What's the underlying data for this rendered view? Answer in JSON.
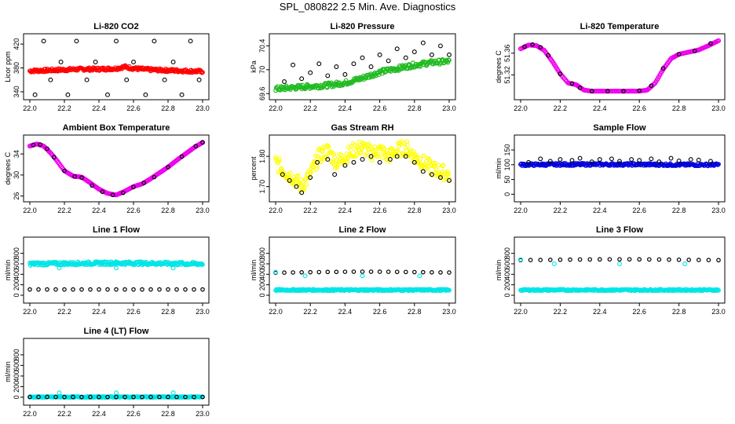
{
  "page": {
    "title": "SPL_080822  2.5 Min. Ave. Diagnostics"
  },
  "chart_data": [
    {
      "id": "co2",
      "type": "scatter",
      "title": "Li-820 CO2",
      "ylabel": "Licor ppm",
      "xlim": [
        22.0,
        23.0
      ],
      "ylim": [
        332,
        432
      ],
      "xticks": [
        "22.0",
        "22.2",
        "22.4",
        "22.6",
        "22.8",
        "23.0"
      ],
      "yticks": [
        340,
        380,
        420
      ],
      "series": [
        {
          "color": "#ff0000",
          "kind": "band",
          "x": [
            22.0,
            22.1,
            22.2,
            22.3,
            22.4,
            22.5,
            22.55,
            22.6,
            22.7,
            22.8,
            22.9,
            23.0
          ],
          "y": [
            375,
            376,
            377,
            378,
            378,
            379,
            382,
            379,
            377,
            376,
            375,
            374
          ],
          "spread": 2.5
        },
        {
          "color": "#000000",
          "kind": "scatter",
          "x": [
            22.03,
            22.08,
            22.12,
            22.18,
            22.22,
            22.27,
            22.33,
            22.38,
            22.45,
            22.5,
            22.56,
            22.6,
            22.67,
            22.72,
            22.78,
            22.83,
            22.88,
            22.93,
            22.98
          ],
          "y": [
            335,
            425,
            360,
            390,
            335,
            425,
            360,
            390,
            335,
            425,
            360,
            390,
            335,
            425,
            360,
            390,
            335,
            425,
            360
          ]
        }
      ]
    },
    {
      "id": "pressure",
      "type": "scatter",
      "title": "Li-820 Pressure",
      "ylabel": "kPa",
      "xlim": [
        22.0,
        23.0
      ],
      "ylim": [
        69.55,
        70.55
      ],
      "xticks": [
        "22.0",
        "22.2",
        "22.4",
        "22.6",
        "22.8",
        "23.0"
      ],
      "yticks": [
        69.6,
        70.0,
        70.4
      ],
      "series": [
        {
          "color": "#22bb22",
          "kind": "band",
          "x": [
            22.0,
            22.1,
            22.2,
            22.3,
            22.4,
            22.5,
            22.6,
            22.7,
            22.8,
            22.9,
            23.0
          ],
          "y": [
            69.68,
            69.7,
            69.72,
            69.74,
            69.78,
            69.86,
            69.96,
            70.02,
            70.08,
            70.12,
            70.14
          ],
          "spread": 0.04
        },
        {
          "color": "#000000",
          "kind": "scatter",
          "x": [
            22.05,
            22.1,
            22.15,
            22.2,
            22.25,
            22.3,
            22.35,
            22.4,
            22.45,
            22.5,
            22.55,
            22.6,
            22.65,
            22.7,
            22.75,
            22.8,
            22.85,
            22.9,
            22.95,
            23.0
          ],
          "y": [
            69.8,
            70.08,
            69.85,
            69.95,
            70.1,
            69.9,
            70.05,
            69.92,
            70.1,
            70.2,
            70.05,
            70.25,
            70.15,
            70.35,
            70.2,
            70.3,
            70.45,
            70.25,
            70.4,
            70.25
          ]
        }
      ]
    },
    {
      "id": "li820temp",
      "type": "scatter",
      "title": "Li-820 Temperature",
      "ylabel": "degrees C",
      "xlim": [
        22.0,
        23.0
      ],
      "ylim": [
        51.28,
        51.39
      ],
      "xticks": [
        "22.0",
        "22.2",
        "22.4",
        "22.6",
        "22.8",
        "23.0"
      ],
      "yticks": [
        51.32,
        51.36
      ],
      "yticklabels": [
        "51.32",
        "51.36"
      ],
      "series": [
        {
          "color": "#ee00ee",
          "kind": "line",
          "x": [
            22.0,
            22.04,
            22.08,
            22.12,
            22.16,
            22.2,
            22.24,
            22.28,
            22.32,
            22.36,
            22.4,
            22.5,
            22.6,
            22.64,
            22.68,
            22.72,
            22.76,
            22.8,
            22.85,
            22.9,
            22.95,
            23.0
          ],
          "y": [
            51.368,
            51.375,
            51.374,
            51.365,
            51.345,
            51.322,
            51.305,
            51.302,
            51.292,
            51.29,
            51.29,
            51.29,
            51.29,
            51.292,
            51.305,
            51.33,
            51.35,
            51.358,
            51.362,
            51.366,
            51.374,
            51.383
          ]
        },
        {
          "color": "#000000",
          "kind": "dots",
          "x": [
            22.02,
            22.06,
            22.1,
            22.14,
            22.2,
            22.26,
            22.3,
            22.36,
            22.44,
            22.52,
            22.6,
            22.66,
            22.72,
            22.8,
            22.88,
            22.96
          ],
          "y": [
            51.372,
            51.376,
            51.371,
            51.356,
            51.322,
            51.304,
            51.296,
            51.29,
            51.29,
            51.29,
            51.291,
            51.3,
            51.332,
            51.358,
            51.364,
            51.378
          ]
        }
      ]
    },
    {
      "id": "boxtemp",
      "type": "scatter",
      "title": "Ambient Box Temperature",
      "ylabel": "degrees C",
      "xlim": [
        22.0,
        23.0
      ],
      "ylim": [
        25.5,
        37.0
      ],
      "xticks": [
        "22.0",
        "22.2",
        "22.4",
        "22.6",
        "22.8",
        "23.0"
      ],
      "yticks": [
        26,
        30,
        34
      ],
      "series": [
        {
          "color": "#ee00ee",
          "kind": "line",
          "x": [
            22.0,
            22.04,
            22.08,
            22.12,
            22.16,
            22.2,
            22.25,
            22.3,
            22.35,
            22.4,
            22.45,
            22.5,
            22.55,
            22.6,
            22.65,
            22.7,
            22.75,
            22.8,
            22.85,
            22.9,
            22.95,
            23.0
          ],
          "y": [
            35.5,
            35.9,
            35.5,
            34.2,
            32.6,
            30.8,
            29.8,
            29.6,
            28.5,
            27.3,
            26.5,
            26.2,
            26.9,
            27.8,
            28.3,
            29.3,
            30.4,
            31.5,
            32.8,
            34.0,
            35.2,
            36.2
          ]
        },
        {
          "color": "#000000",
          "kind": "dots",
          "x": [
            22.02,
            22.06,
            22.1,
            22.14,
            22.2,
            22.26,
            22.3,
            22.36,
            22.42,
            22.48,
            22.54,
            22.6,
            22.66,
            22.72,
            22.8,
            22.88,
            22.96,
            23.0
          ],
          "y": [
            35.7,
            35.8,
            35.0,
            33.4,
            30.8,
            29.7,
            29.5,
            28.0,
            26.8,
            26.2,
            26.6,
            27.7,
            28.5,
            29.6,
            31.5,
            33.5,
            35.5,
            36.2
          ]
        }
      ]
    },
    {
      "id": "rh",
      "type": "scatter",
      "title": "Gas Stream RH",
      "ylabel": "percent",
      "xlim": [
        22.0,
        23.0
      ],
      "ylim": [
        1.66,
        1.86
      ],
      "xticks": [
        "22.0",
        "22.2",
        "22.4",
        "22.6",
        "22.8",
        "23.0"
      ],
      "yticks": [
        1.7,
        1.8
      ],
      "yticklabels": [
        "1.70",
        "1.80"
      ],
      "series": [
        {
          "color": "#ffff00",
          "kind": "band",
          "x": [
            22.0,
            22.05,
            22.1,
            22.15,
            22.2,
            22.25,
            22.3,
            22.35,
            22.4,
            22.45,
            22.5,
            22.55,
            22.6,
            22.65,
            22.7,
            22.75,
            22.8,
            22.85,
            22.9,
            22.95,
            23.0
          ],
          "y": [
            1.78,
            1.75,
            1.73,
            1.7,
            1.74,
            1.8,
            1.82,
            1.78,
            1.8,
            1.82,
            1.83,
            1.81,
            1.82,
            1.8,
            1.82,
            1.83,
            1.8,
            1.78,
            1.76,
            1.75,
            1.74
          ],
          "spread": 0.025
        },
        {
          "color": "#000000",
          "kind": "scatter",
          "x": [
            22.04,
            22.08,
            22.12,
            22.15,
            22.2,
            22.24,
            22.3,
            22.34,
            22.4,
            22.45,
            22.5,
            22.55,
            22.6,
            22.66,
            22.7,
            22.75,
            22.8,
            22.85,
            22.9,
            22.95,
            23.0
          ],
          "y": [
            1.74,
            1.72,
            1.7,
            1.68,
            1.73,
            1.78,
            1.79,
            1.74,
            1.77,
            1.78,
            1.79,
            1.8,
            1.78,
            1.79,
            1.8,
            1.8,
            1.78,
            1.75,
            1.74,
            1.73,
            1.72
          ]
        }
      ]
    },
    {
      "id": "sampleflow",
      "type": "scatter",
      "title": "Sample Flow",
      "ylabel": "ml/min",
      "xlim": [
        22.0,
        23.0
      ],
      "ylim": [
        -15,
        190
      ],
      "xticks": [
        "22.0",
        "22.2",
        "22.4",
        "22.6",
        "22.8",
        "23.0"
      ],
      "yticks": [
        0,
        50,
        100,
        150
      ],
      "series": [
        {
          "color": "#0000dd",
          "kind": "band",
          "x": [
            22.0,
            22.2,
            22.4,
            22.6,
            22.8,
            23.0
          ],
          "y": [
            100,
            101,
            101,
            101,
            100,
            100
          ],
          "spread": 4
        },
        {
          "color": "#000000",
          "kind": "scatter",
          "x": [
            22.04,
            22.1,
            22.15,
            22.2,
            22.26,
            22.3,
            22.36,
            22.4,
            22.46,
            22.5,
            22.56,
            22.6,
            22.66,
            22.7,
            22.76,
            22.8,
            22.86,
            22.9,
            22.96
          ],
          "y": [
            108,
            120,
            112,
            118,
            115,
            122,
            110,
            118,
            120,
            112,
            118,
            115,
            120,
            110,
            122,
            113,
            118,
            116,
            112
          ]
        }
      ]
    },
    {
      "id": "line1",
      "type": "scatter",
      "title": "Line 1 Flow",
      "ylabel": "ml/min",
      "xlim": [
        22.0,
        23.0
      ],
      "ylim": [
        -90,
        1050
      ],
      "xticks": [
        "22.0",
        "22.2",
        "22.4",
        "22.6",
        "22.8",
        "23.0"
      ],
      "yticks": [
        0,
        200,
        400,
        600,
        800
      ],
      "series": [
        {
          "color": "#00e5e5",
          "kind": "band",
          "x": [
            22.0,
            22.5,
            23.0
          ],
          "y": [
            600,
            615,
            600
          ],
          "spread": 30
        },
        {
          "color": "#000000",
          "kind": "dots",
          "x": [
            22.0,
            22.05,
            22.1,
            22.15,
            22.2,
            22.25,
            22.3,
            22.35,
            22.4,
            22.45,
            22.5,
            22.55,
            22.6,
            22.65,
            22.7,
            22.75,
            22.8,
            22.85,
            22.9,
            22.95,
            23.0
          ],
          "y": [
            110,
            110,
            110,
            110,
            110,
            110,
            110,
            110,
            110,
            110,
            110,
            110,
            110,
            110,
            110,
            110,
            110,
            110,
            110,
            110,
            110
          ]
        },
        {
          "color": "#00e5e5",
          "kind": "scatter",
          "x": [
            22.17,
            22.5,
            22.83
          ],
          "y": [
            520,
            520,
            520
          ]
        }
      ]
    },
    {
      "id": "line2",
      "type": "scatter",
      "title": "Line 2 Flow",
      "ylabel": "ml/min",
      "xlim": [
        22.0,
        23.0
      ],
      "ylim": [
        -90,
        1050
      ],
      "xticks": [
        "22.0",
        "22.2",
        "22.4",
        "22.6",
        "22.8",
        "23.0"
      ],
      "yticks": [
        0,
        200,
        400,
        600,
        800
      ],
      "series": [
        {
          "color": "#00e5e5",
          "kind": "band",
          "x": [
            22.0,
            23.0
          ],
          "y": [
            100,
            100
          ],
          "spread": 14
        },
        {
          "color": "#000000",
          "kind": "dots",
          "x": [
            22.0,
            22.05,
            22.1,
            22.15,
            22.2,
            22.25,
            22.3,
            22.35,
            22.4,
            22.45,
            22.5,
            22.55,
            22.6,
            22.65,
            22.7,
            22.75,
            22.8,
            22.85,
            22.9,
            22.95,
            23.0
          ],
          "y": [
            430,
            432,
            435,
            438,
            440,
            442,
            445,
            446,
            448,
            450,
            450,
            450,
            449,
            448,
            446,
            444,
            442,
            440,
            438,
            436,
            434
          ]
        },
        {
          "color": "#00e5e5",
          "kind": "scatter",
          "x": [
            22.0,
            22.17,
            22.5,
            22.83
          ],
          "y": [
            440,
            370,
            370,
            370
          ]
        }
      ]
    },
    {
      "id": "line3",
      "type": "scatter",
      "title": "Line 3 Flow",
      "ylabel": "ml/min",
      "xlim": [
        22.0,
        23.0
      ],
      "ylim": [
        -90,
        1050
      ],
      "xticks": [
        "22.0",
        "22.2",
        "22.4",
        "22.6",
        "22.8",
        "23.0"
      ],
      "yticks": [
        0,
        200,
        400,
        600,
        800
      ],
      "series": [
        {
          "color": "#00e5e5",
          "kind": "band",
          "x": [
            22.0,
            23.0
          ],
          "y": [
            100,
            100
          ],
          "spread": 14
        },
        {
          "color": "#000000",
          "kind": "dots",
          "x": [
            22.0,
            22.05,
            22.1,
            22.15,
            22.2,
            22.25,
            22.3,
            22.35,
            22.4,
            22.45,
            22.5,
            22.55,
            22.6,
            22.65,
            22.7,
            22.75,
            22.8,
            22.85,
            22.9,
            22.95,
            23.0
          ],
          "y": [
            670,
            672,
            674,
            676,
            678,
            680,
            682,
            684,
            685,
            686,
            686,
            686,
            685,
            684,
            682,
            680,
            678,
            676,
            674,
            672,
            670
          ]
        },
        {
          "color": "#00e5e5",
          "kind": "scatter",
          "x": [
            22.0,
            22.17,
            22.5,
            22.83
          ],
          "y": [
            680,
            600,
            600,
            600
          ]
        }
      ]
    },
    {
      "id": "line4",
      "type": "scatter",
      "title": "Line 4 (LT) Flow",
      "ylabel": "ml/min",
      "xlim": [
        22.0,
        23.0
      ],
      "ylim": [
        -90,
        1050
      ],
      "xticks": [
        "22.0",
        "22.2",
        "22.4",
        "22.6",
        "22.8",
        "23.0"
      ],
      "yticks": [
        0,
        200,
        400,
        600,
        800
      ],
      "series": [
        {
          "color": "#00e5e5",
          "kind": "band",
          "x": [
            22.0,
            23.0
          ],
          "y": [
            5,
            5
          ],
          "spread": 10
        },
        {
          "color": "#000000",
          "kind": "dots",
          "x": [
            22.0,
            22.05,
            22.1,
            22.15,
            22.2,
            22.25,
            22.3,
            22.35,
            22.4,
            22.45,
            22.5,
            22.55,
            22.6,
            22.65,
            22.7,
            22.75,
            22.8,
            22.85,
            22.9,
            22.95,
            23.0
          ],
          "y": [
            5,
            5,
            5,
            5,
            5,
            5,
            5,
            5,
            5,
            5,
            5,
            5,
            5,
            5,
            5,
            5,
            5,
            5,
            5,
            5,
            5
          ]
        },
        {
          "color": "#00e5e5",
          "kind": "scatter",
          "x": [
            22.17,
            22.5,
            22.83
          ],
          "y": [
            85,
            85,
            85
          ]
        }
      ]
    }
  ]
}
